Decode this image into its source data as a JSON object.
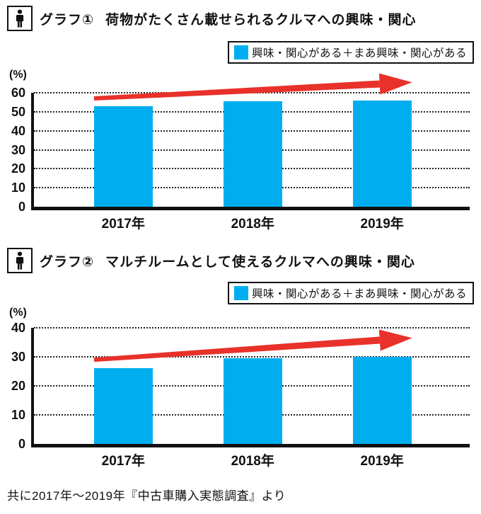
{
  "caption": "共に2017年～2019年『中古車購入実態調査』より",
  "colors": {
    "bar": "#00AEEF",
    "arrow": "#E8312A",
    "axis": "#111111",
    "grid": "#222222"
  },
  "chart_data": [
    {
      "type": "bar",
      "graph_label": "グラフ①",
      "title": "荷物がたくさん載せられるクルマへの興味・関心",
      "legend": "興味・関心がある＋まあ興味・関心がある",
      "unit_label": "(%)",
      "categories": [
        "2017年",
        "2018年",
        "2019年"
      ],
      "values": [
        53,
        55.5,
        56
      ],
      "ylim": [
        0,
        60
      ],
      "ytick_step": 10,
      "grid": "horizontal-dotted",
      "legend_position": "top-right",
      "annotation": {
        "type": "trend-arrow",
        "description": "red rising arrow across the three bars",
        "from": {
          "x_frac": 0.138,
          "value": 57
        },
        "to": {
          "x_frac": 0.868,
          "value": 65.5
        }
      }
    },
    {
      "type": "bar",
      "graph_label": "グラフ②",
      "title": "マルチルームとして使えるクルマへの興味・関心",
      "legend": "興味・関心がある＋まあ興味・関心がある",
      "unit_label": "(%)",
      "categories": [
        "2017年",
        "2018年",
        "2019年"
      ],
      "values": [
        26,
        29.5,
        30
      ],
      "ylim": [
        0,
        40
      ],
      "ytick_step": 10,
      "grid": "horizontal-dotted",
      "legend_position": "top-right",
      "annotation": {
        "type": "trend-arrow",
        "description": "red rising arrow across the three bars",
        "from": {
          "x_frac": 0.138,
          "value": 29
        },
        "to": {
          "x_frac": 0.868,
          "value": 36.5
        }
      }
    }
  ]
}
